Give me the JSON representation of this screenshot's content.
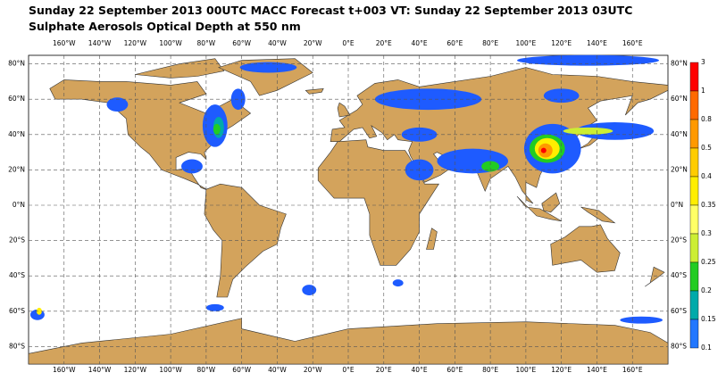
{
  "header": {
    "title_line1": "Sunday 22 September 2013 00UTC MACC Forecast t+003 VT: Sunday 22 September 2013 03UTC",
    "title_line2": "Sulphate Aerosols Optical Depth at 550 nm"
  },
  "map": {
    "lon_ticks": [
      {
        "value": -160,
        "label": "160°W"
      },
      {
        "value": -140,
        "label": "140°W"
      },
      {
        "value": -120,
        "label": "120°W"
      },
      {
        "value": -100,
        "label": "100°W"
      },
      {
        "value": -80,
        "label": "80°W"
      },
      {
        "value": -60,
        "label": "60°W"
      },
      {
        "value": -40,
        "label": "40°W"
      },
      {
        "value": -20,
        "label": "20°W"
      },
      {
        "value": 0,
        "label": "0°E"
      },
      {
        "value": 20,
        "label": "20°E"
      },
      {
        "value": 40,
        "label": "40°E"
      },
      {
        "value": 60,
        "label": "60°E"
      },
      {
        "value": 80,
        "label": "80°E"
      },
      {
        "value": 100,
        "label": "100°E"
      },
      {
        "value": 120,
        "label": "120°E"
      },
      {
        "value": 140,
        "label": "140°E"
      },
      {
        "value": 160,
        "label": "160°E"
      }
    ],
    "lat_ticks": [
      {
        "value": 80,
        "label": "80°N"
      },
      {
        "value": 60,
        "label": "60°N"
      },
      {
        "value": 40,
        "label": "40°N"
      },
      {
        "value": 20,
        "label": "20°N"
      },
      {
        "value": 0,
        "label": "0°N"
      },
      {
        "value": -20,
        "label": "20°S"
      },
      {
        "value": -40,
        "label": "40°S"
      },
      {
        "value": -60,
        "label": "60°S"
      },
      {
        "value": -80,
        "label": "80°S"
      }
    ]
  },
  "colorbar": {
    "levels": [
      3,
      1,
      0.8,
      0.5,
      0.4,
      0.35,
      0.3,
      0.25,
      0.2,
      0.15,
      0.1
    ],
    "colors": [
      "#ff0000",
      "#ff6a00",
      "#ff9900",
      "#ffcc00",
      "#ffee00",
      "#ffff66",
      "#ccee33",
      "#22cc22",
      "#00aaaa",
      "#2277ff"
    ]
  }
}
